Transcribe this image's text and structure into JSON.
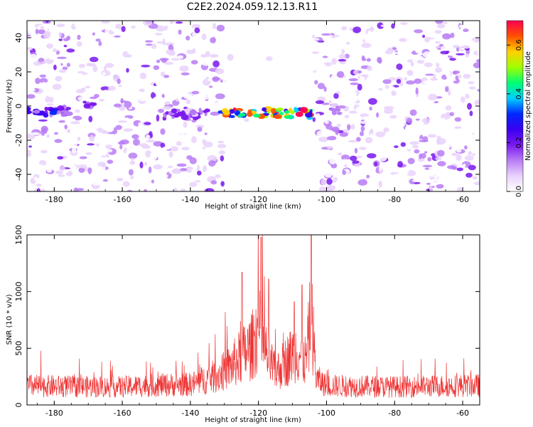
{
  "title": "C2E2.2024.059.12.13.R11",
  "colors": {
    "snr_line": "#ee3333",
    "axis": "#000000",
    "colormap": [
      "#ffffff",
      "#e9d2fb",
      "#b87cf4",
      "#7a18ee",
      "#3a00f0",
      "#0028ff",
      "#00d0ff",
      "#00ff70",
      "#a0ff00",
      "#ffd000",
      "#ff5000",
      "#ff0050"
    ]
  },
  "chart_data": [
    {
      "type": "heatmap",
      "xlabel": "Height of straight line (km)",
      "ylabel": "Frequency (Hz)",
      "xlim": [
        -188,
        -55
      ],
      "ylim": [
        -50,
        50
      ],
      "xticks": [
        -180,
        -160,
        -140,
        -120,
        -100,
        -80,
        -60
      ],
      "yticks": [
        -40,
        -20,
        0,
        20,
        40
      ],
      "masked_region_km": [
        -130,
        -104
      ],
      "signal_features": [
        {
          "x_range": [
            -188,
            -175
          ],
          "frequency_hz": -3,
          "amplitude": 0.3
        },
        {
          "x_range": [
            -172,
            -168
          ],
          "frequency_hz": 0,
          "amplitude": 0.25
        },
        {
          "x_range": [
            -148,
            -135
          ],
          "frequency_hz": -5,
          "amplitude": 0.2
        },
        {
          "x_range": [
            -131,
            -104
          ],
          "frequency_hz": -4,
          "amplitude": 0.7
        },
        {
          "x_range": [
            -98,
            -96
          ],
          "frequency_hz": -2,
          "amplitude": 0.2
        }
      ],
      "colorbar": {
        "label": "Normalized spectral amplitude",
        "range": [
          0,
          0.7
        ],
        "ticks": [
          0.0,
          0.2,
          0.4,
          0.6
        ]
      }
    },
    {
      "type": "line",
      "xlabel": "Height of straight line (km)",
      "ylabel": "SNR (10 * v/v)",
      "xlim": [
        -188,
        -55
      ],
      "ylim": [
        0,
        1500
      ],
      "xticks": [
        -180,
        -160,
        -140,
        -120,
        -100,
        -80,
        -60
      ],
      "yticks": [
        0,
        500,
        1000,
        1500
      ],
      "series": [
        {
          "x": [
            -188,
            -180,
            -170,
            -160,
            -150,
            -140,
            -132,
            -128,
            -125,
            -122,
            -120,
            -118,
            -115,
            -112,
            -109,
            -106,
            -104.5,
            -103,
            -100,
            -90,
            -80,
            -70,
            -60,
            -55
          ],
          "y": [
            170,
            165,
            160,
            160,
            175,
            180,
            260,
            340,
            430,
            510,
            680,
            470,
            280,
            380,
            480,
            380,
            820,
            230,
            170,
            165,
            160,
            165,
            170,
            170
          ]
        }
      ],
      "peaks": [
        {
          "x": -124.8,
          "y": 1170
        },
        {
          "x": -119.2,
          "y": 1480
        },
        {
          "x": -117.0,
          "y": 1110
        },
        {
          "x": -109.5,
          "y": 910
        },
        {
          "x": -107.2,
          "y": 1060
        },
        {
          "x": -104.5,
          "y": 1530
        }
      ]
    }
  ]
}
